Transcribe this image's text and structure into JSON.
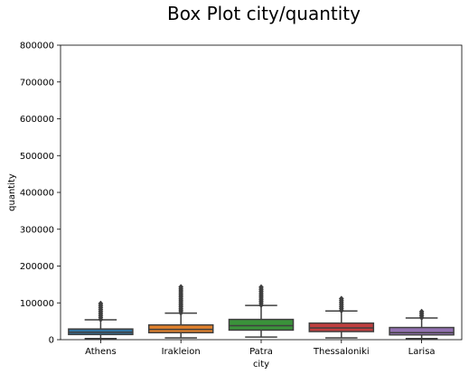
{
  "chart_data": {
    "type": "box",
    "title": "Box Plot city/quantity",
    "xlabel": "city",
    "ylabel": "quantity",
    "categories": [
      "Athens",
      "Irakleion",
      "Patra",
      "Thessaloniki",
      "Larisa"
    ],
    "ylim": [
      0,
      800000
    ],
    "yticks": [
      0,
      100000,
      200000,
      300000,
      400000,
      500000,
      600000,
      700000,
      800000
    ],
    "ytick_labels": [
      "0",
      "100000",
      "200000",
      "300000",
      "400000",
      "500000",
      "600000",
      "700000",
      "800000"
    ],
    "grid": false,
    "series": [
      {
        "category": "Athens",
        "whisker_low": 3000,
        "q1": 14000,
        "median": 20000,
        "q3": 29000,
        "whisker_high": 54000,
        "outlier_low": 55000,
        "outlier_high": 102000,
        "color": "#3274a1"
      },
      {
        "category": "Irakleion",
        "whisker_low": 5000,
        "q1": 19000,
        "median": 28000,
        "q3": 40000,
        "whisker_high": 72000,
        "outlier_low": 73000,
        "outlier_high": 145000,
        "color": "#e1812c"
      },
      {
        "category": "Patra",
        "whisker_low": 7000,
        "q1": 26000,
        "median": 38000,
        "q3": 55000,
        "whisker_high": 93000,
        "outlier_low": 94000,
        "outlier_high": 145000,
        "color": "#3a923a"
      },
      {
        "category": "Thessaloniki",
        "whisker_low": 5000,
        "q1": 22000,
        "median": 32000,
        "q3": 45000,
        "whisker_high": 78000,
        "outlier_low": 79000,
        "outlier_high": 115000,
        "color": "#c03d3e"
      },
      {
        "category": "Larisa",
        "whisker_low": 3000,
        "q1": 13000,
        "median": 19000,
        "q3": 33000,
        "whisker_high": 59000,
        "outlier_low": 60000,
        "outlier_high": 77000,
        "color": "#9372b2"
      }
    ]
  }
}
